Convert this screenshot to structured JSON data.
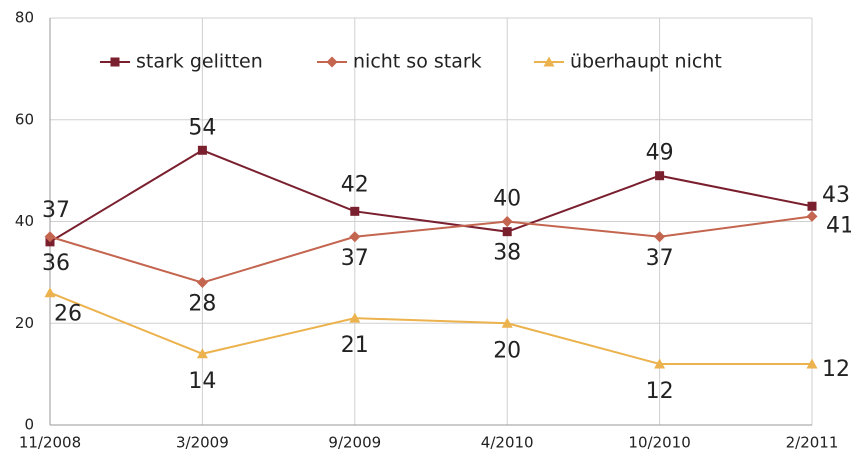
{
  "chart_data": {
    "type": "line",
    "categories": [
      "11/2008",
      "3/2009",
      "9/2009",
      "4/2010",
      "10/2010",
      "2/2011"
    ],
    "series": [
      {
        "name": "stark gelitten",
        "color": "#7a1f2e",
        "marker": "square",
        "values": [
          36,
          54,
          42,
          38,
          49,
          43
        ]
      },
      {
        "name": "nicht so stark",
        "color": "#c3654f",
        "marker": "diamond",
        "values": [
          37,
          28,
          37,
          40,
          37,
          41
        ]
      },
      {
        "name": "überhaupt nicht",
        "color": "#ebb24d",
        "marker": "triangle",
        "values": [
          26,
          14,
          21,
          20,
          12,
          12
        ]
      }
    ],
    "ylim": [
      0,
      80
    ],
    "yticks": [
      0,
      20,
      40,
      60,
      80
    ],
    "grid": true,
    "legend": "top"
  }
}
